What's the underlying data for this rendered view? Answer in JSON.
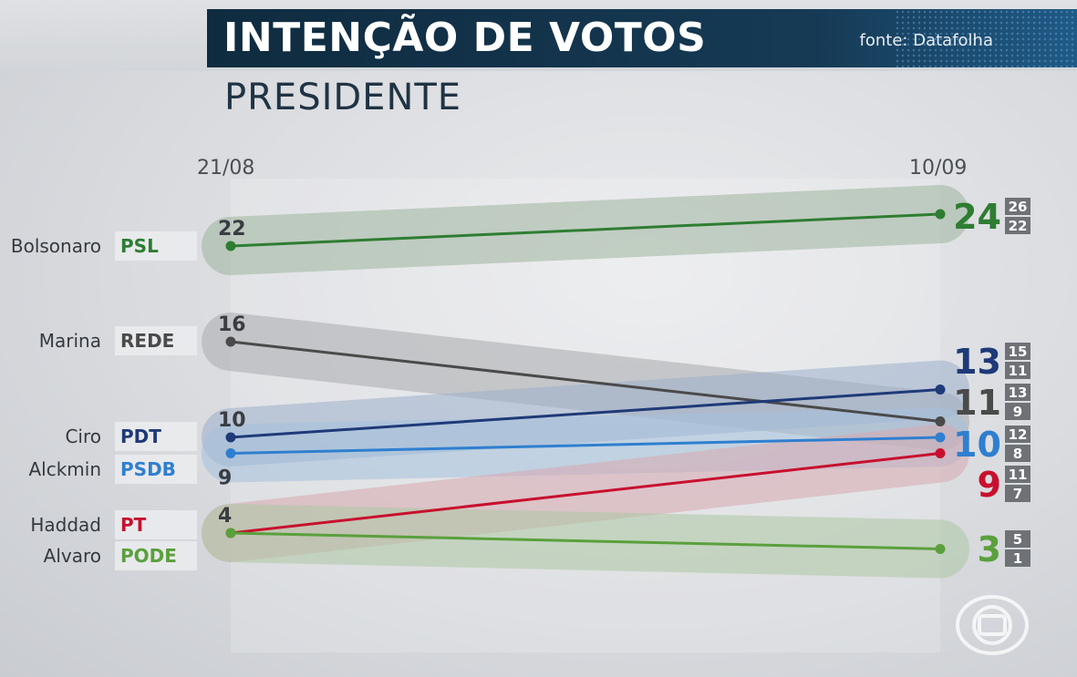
{
  "title": "INTENÇÃO DE VOTOS",
  "source": "fonte: Datafolha",
  "subtitle": "PRESIDENTE",
  "chart_data": {
    "type": "line",
    "x": [
      "21/08",
      "10/09"
    ],
    "grid": false,
    "series": [
      {
        "candidate": "Bolsonaro",
        "party": "PSL",
        "color": "#2e7d32",
        "band": "#9fb59f",
        "values": [
          22,
          24
        ],
        "start_label": "22",
        "end_label": "24",
        "range_label": [
          "26",
          "22"
        ]
      },
      {
        "candidate": "Marina",
        "party": "REDE",
        "color": "#4a4a4a",
        "band": "#a9abae",
        "values": [
          16,
          11
        ],
        "start_label": "16",
        "end_label": "11",
        "range_label": [
          "13",
          "9"
        ]
      },
      {
        "candidate": "Ciro",
        "party": "PDT",
        "color": "#1f3a78",
        "band": "#9db0cc",
        "values": [
          10,
          13
        ],
        "start_label": "10",
        "end_label": "13",
        "range_label": [
          "15",
          "11"
        ]
      },
      {
        "candidate": "Alckmin",
        "party": "PSDB",
        "color": "#2f7fd0",
        "band": "#a5c2de",
        "values": [
          9,
          10
        ],
        "start_label": "9",
        "end_label": "10",
        "range_label": [
          "12",
          "8"
        ]
      },
      {
        "candidate": "Haddad",
        "party": "PT",
        "color": "#c8102e",
        "band": "#d7a9b0",
        "values": [
          4,
          9
        ],
        "start_label": "4",
        "end_label": "9",
        "range_label": [
          "11",
          "7"
        ]
      },
      {
        "candidate": "Alvaro",
        "party": "PODE",
        "color": "#5aa03c",
        "band": "#aec8a4",
        "values": [
          4,
          3
        ],
        "start_label": "",
        "end_label": "3",
        "range_label": [
          "5",
          "1"
        ]
      }
    ]
  }
}
